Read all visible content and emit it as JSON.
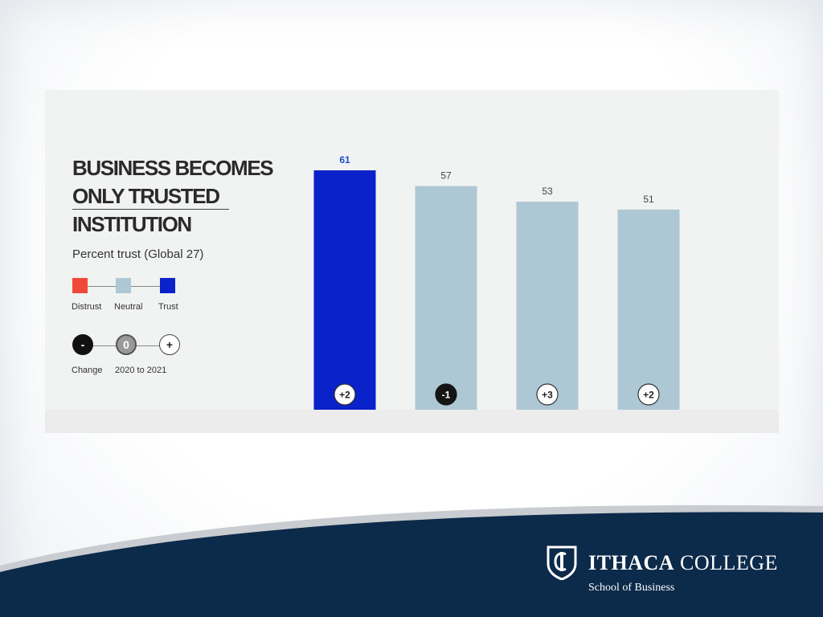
{
  "colors": {
    "trust": "#0a22c9",
    "neutral": "#adc8d4",
    "distrust": "#f0493a",
    "trust_label": "#1a4fd0",
    "footer_navy": "#0c2a4a"
  },
  "chart_data": {
    "type": "bar",
    "title_lines": [
      "BUSINESS BECOMES",
      "ONLY TRUSTED",
      "INSTITUTION"
    ],
    "subtitle": "Percent trust (Global 27)",
    "values": [
      61,
      57,
      53,
      51
    ],
    "changes": [
      "+2",
      "-1",
      "+3",
      "+2"
    ],
    "bar_colors": [
      "trust",
      "neutral",
      "neutral",
      "neutral"
    ],
    "change_styles": [
      "light",
      "dark",
      "light",
      "light"
    ],
    "ylim": [
      0,
      61
    ],
    "grid": false,
    "legend": {
      "scale_items": [
        {
          "label": "Distrust",
          "color": "distrust"
        },
        {
          "label": "Neutral",
          "color": "neutral"
        },
        {
          "label": "Trust",
          "color": "trust"
        }
      ],
      "change_items": [
        {
          "symbol": "-",
          "style": "dark"
        },
        {
          "symbol": "0",
          "style": "mid"
        },
        {
          "symbol": "+",
          "style": "light"
        }
      ],
      "change_label": "Change",
      "period_label": "2020 to 2021"
    }
  },
  "footer": {
    "logo_name_bold": "ITHACA",
    "logo_name_light": "COLLEGE",
    "logo_subtitle": "School of Business"
  }
}
